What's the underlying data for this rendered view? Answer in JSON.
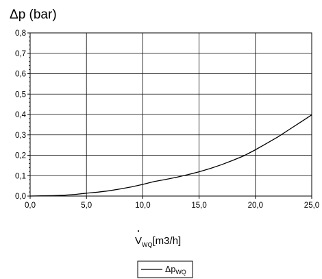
{
  "chart_data": {
    "type": "line",
    "ylabel": "Δp (bar)",
    "xlabel_symbol": "V",
    "xlabel_subscript": "WQ",
    "xlabel_unit": "[m3/h]",
    "xlim": [
      0,
      25
    ],
    "ylim": [
      0,
      0.8
    ],
    "x_ticks": [
      0,
      5,
      10,
      15,
      20,
      25
    ],
    "x_tick_labels": [
      "0,0",
      "5,0",
      "10,0",
      "15,0",
      "20,0",
      "25,0"
    ],
    "y_ticks": [
      0,
      0.1,
      0.2,
      0.3,
      0.4,
      0.5,
      0.6,
      0.7,
      0.8
    ],
    "y_tick_labels": [
      "0,0",
      "0,1",
      "0,2",
      "0,3",
      "0,4",
      "0,5",
      "0,6",
      "0,7",
      "0,8"
    ],
    "grid": true,
    "legend_position": "bottom-center",
    "series": [
      {
        "name": "Δp",
        "name_subscript": "WQ",
        "color": "#000000",
        "x": [
          0,
          1,
          2,
          3,
          4,
          5,
          6,
          7,
          8,
          9,
          10,
          11,
          12,
          13,
          14,
          15,
          16,
          17,
          18,
          19,
          20,
          21,
          22,
          23,
          24,
          25
        ],
        "y": [
          0,
          0.001,
          0.002,
          0.004,
          0.008,
          0.014,
          0.019,
          0.026,
          0.035,
          0.045,
          0.057,
          0.071,
          0.081,
          0.092,
          0.105,
          0.119,
          0.135,
          0.154,
          0.175,
          0.198,
          0.227,
          0.258,
          0.29,
          0.326,
          0.362,
          0.398
        ]
      }
    ]
  }
}
